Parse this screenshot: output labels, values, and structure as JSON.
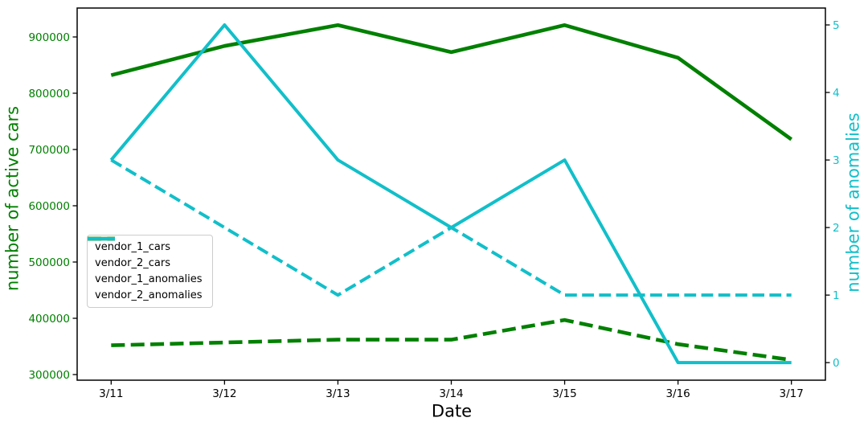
{
  "chart_data": {
    "type": "line",
    "title": "",
    "xlabel": "Date",
    "grid": false,
    "legend": {
      "position": "center-left"
    },
    "x": {
      "categories": [
        "3/11",
        "3/12",
        "3/13",
        "3/14",
        "3/15",
        "3/16",
        "3/17"
      ],
      "range": [
        -0.3,
        6.3
      ]
    },
    "left_axis": {
      "label": "number of active cars",
      "color": "#008000",
      "ticks": [
        300000,
        400000,
        500000,
        600000,
        700000,
        800000,
        900000
      ],
      "range": [
        290000,
        951400
      ]
    },
    "right_axis": {
      "label": "number of anomalies",
      "color": "#11bfc9",
      "ticks": [
        0,
        1,
        2,
        3,
        4,
        5
      ],
      "range": [
        -0.26,
        5.25
      ]
    },
    "series": [
      {
        "name": "vendor_1_cars",
        "axis": "left",
        "color": "#008000",
        "dash": "solid",
        "linewidth": 4.6,
        "values": [
          832000,
          884000,
          921000,
          873000,
          921000,
          863000,
          718000
        ]
      },
      {
        "name": "vendor_2_cars",
        "axis": "left",
        "color": "#008000",
        "dash": "dashed",
        "linewidth": 4.6,
        "values": [
          352000,
          357000,
          362000,
          362000,
          397000,
          354000,
          326000
        ]
      },
      {
        "name": "vendor_1_anomalies",
        "axis": "right",
        "color": "#11bfc9",
        "dash": "solid",
        "linewidth": 4.0,
        "values": [
          3,
          5,
          3,
          2,
          3,
          0,
          0
        ]
      },
      {
        "name": "vendor_2_anomalies",
        "axis": "right",
        "color": "#11bfc9",
        "dash": "dashed",
        "linewidth": 4.0,
        "values": [
          3,
          2,
          1,
          2,
          1,
          1,
          1
        ]
      }
    ]
  }
}
